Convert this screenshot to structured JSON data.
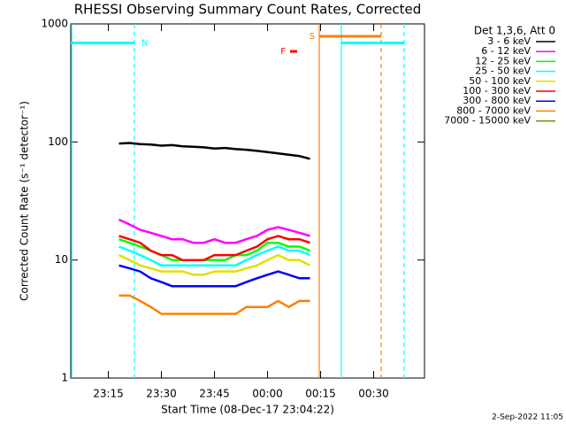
{
  "chart_data": {
    "type": "line",
    "title": "RHESSI Observing Summary Count Rates, Corrected",
    "xlabel": "Start Time (08-Dec-17 23:04:22)",
    "ylabel": "Corrected Count Rate (s⁻¹ detector⁻¹)",
    "footer": "2-Sep-2022 11:05",
    "legend_title": "Det 1,3,6, Att 0",
    "log_y": true,
    "xlim": [
      "23:04:22",
      "00:44:22"
    ],
    "xticks": [
      "23:15",
      "23:30",
      "23:45",
      "00:00",
      "00:15",
      "00:30"
    ],
    "ylim": [
      1,
      1000
    ],
    "yticks": [
      1,
      10,
      100,
      1000
    ],
    "x": [
      "23:18",
      "23:21",
      "23:24",
      "23:27",
      "23:30",
      "23:33",
      "23:36",
      "23:39",
      "23:42",
      "23:45",
      "23:48",
      "23:51",
      "23:54",
      "23:57",
      "00:00",
      "00:03",
      "00:06",
      "00:09",
      "00:12"
    ],
    "series": [
      {
        "name": "3 - 6 keV",
        "color": "#000000",
        "values": [
          97,
          98,
          96,
          95,
          93,
          94,
          92,
          91,
          90,
          88,
          89,
          87,
          86,
          84,
          82,
          80,
          78,
          76,
          72
        ]
      },
      {
        "name": "6 - 12 keV",
        "color": "#ff00ff",
        "values": [
          22,
          20,
          18,
          17,
          16,
          15,
          15,
          14,
          14,
          15,
          14,
          14,
          15,
          16,
          18,
          19,
          18,
          17,
          16
        ]
      },
      {
        "name": "12 - 25 keV",
        "color": "#00ff00",
        "values": [
          15,
          14,
          13,
          12,
          11,
          10,
          10,
          10,
          10,
          10,
          10,
          11,
          11,
          12,
          14,
          14,
          13,
          13,
          12
        ]
      },
      {
        "name": "25 - 50 keV",
        "color": "#00ffff",
        "values": [
          13,
          12,
          11,
          10,
          9,
          9,
          9,
          9,
          9,
          9,
          9,
          9,
          10,
          11,
          12,
          13,
          12,
          12,
          11
        ]
      },
      {
        "name": "50 - 100 keV",
        "color": "#e0e000",
        "values": [
          11,
          10,
          9,
          8.5,
          8,
          8,
          8,
          7.5,
          7.5,
          8,
          8,
          8,
          8.5,
          9,
          10,
          11,
          10,
          10,
          9
        ]
      },
      {
        "name": "100 - 300 keV",
        "color": "#ff0000",
        "values": [
          16,
          15,
          14,
          12,
          11,
          11,
          10,
          10,
          10,
          11,
          11,
          11,
          12,
          13,
          15,
          16,
          15,
          15,
          14
        ]
      },
      {
        "name": "300 - 800 keV",
        "color": "#0000ff",
        "values": [
          9,
          8.5,
          8,
          7,
          6.5,
          6,
          6,
          6,
          6,
          6,
          6,
          6,
          6.5,
          7,
          7.5,
          8,
          7.5,
          7,
          7
        ]
      },
      {
        "name": "800 - 7000 keV",
        "color": "#ff8000",
        "values": [
          5,
          5,
          4.5,
          4,
          3.5,
          3.5,
          3.5,
          3.5,
          3.5,
          3.5,
          3.5,
          3.5,
          4,
          4,
          4,
          4.5,
          4,
          4.5,
          4.5
        ]
      },
      {
        "name": "7000 - 15000 keV",
        "color": "#808000",
        "values": [
          null,
          null,
          null,
          null,
          null,
          null,
          null,
          null,
          null,
          null,
          null,
          null,
          null,
          null,
          null,
          null,
          null,
          null,
          null
        ]
      }
    ],
    "flags": [
      {
        "label": "N",
        "color": "#00ffff",
        "start": "23:04:22",
        "end": "23:22:22",
        "level": 690
      },
      {
        "label": "",
        "color": "#00ffff",
        "start": "00:20:52",
        "end": "00:38:37",
        "level": 690
      },
      {
        "label": "S",
        "color": "#ff8000",
        "start": "00:14:37",
        "end": "00:32:07",
        "level": 785
      },
      {
        "label": "F",
        "color": "#ff0000",
        "start": "00:06:22",
        "end": "00:08:22",
        "level": 585
      }
    ],
    "vlines": [
      {
        "x": "23:04:37",
        "color": "#00ffff",
        "dashed": false
      },
      {
        "x": "23:22:22",
        "color": "#00ffff",
        "dashed": true
      },
      {
        "x": "00:14:37",
        "color": "#ff8000",
        "dashed": false
      },
      {
        "x": "00:20:52",
        "color": "#00ffff",
        "dashed": false
      },
      {
        "x": "00:32:07",
        "color": "#ff8000",
        "dashed": true
      },
      {
        "x": "00:38:37",
        "color": "#00ffff",
        "dashed": true
      }
    ]
  }
}
